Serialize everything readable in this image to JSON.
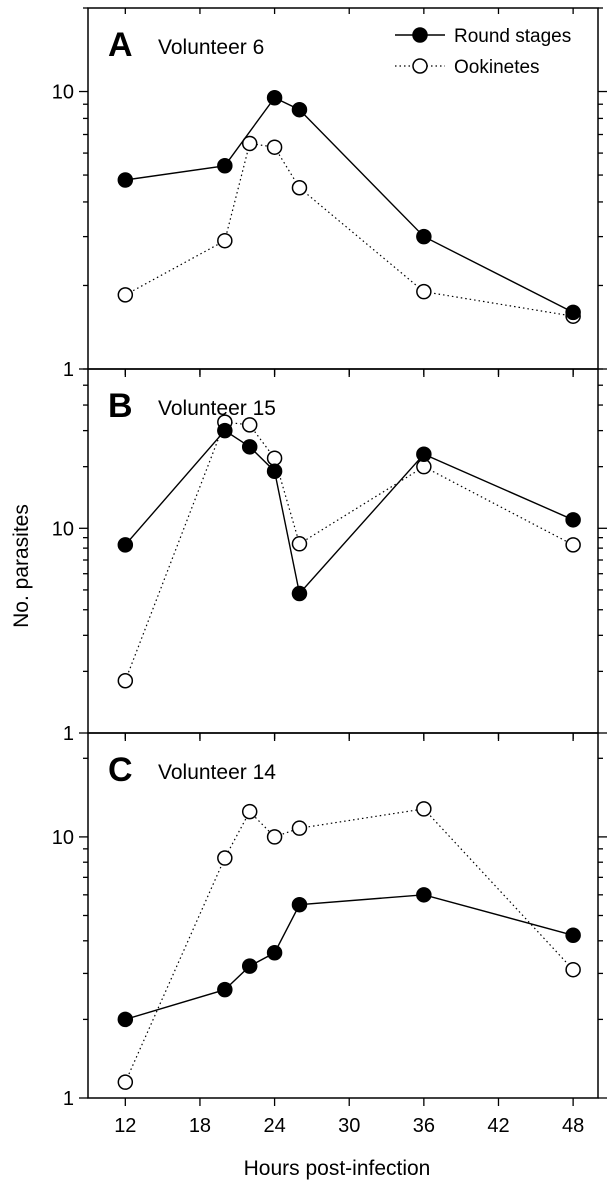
{
  "legend": {
    "position": "top-right",
    "round_label": "Round stages",
    "ookinete_label": "Ookinetes"
  },
  "axes": {
    "xlabel": "Hours post-infection",
    "ylabel": "No. parasites",
    "x_ticks": [
      "12",
      "18",
      "24",
      "30",
      "36",
      "42",
      "48"
    ]
  },
  "chart_data": [
    {
      "type": "line",
      "letter": "A",
      "title": "Volunteer 6",
      "yscale": "log",
      "ylim": [
        1,
        20
      ],
      "y_tick_labels": [
        "1",
        "10"
      ],
      "xlim": [
        9,
        50
      ],
      "series": [
        {
          "name": "Round stages",
          "marker": "filled-circle",
          "line": "solid",
          "x": [
            12,
            20,
            24,
            26,
            36,
            48
          ],
          "y": [
            4.8,
            5.4,
            9.5,
            8.6,
            3.0,
            1.6
          ]
        },
        {
          "name": "Ookinetes",
          "marker": "open-circle",
          "line": "dotted",
          "x": [
            12,
            20,
            22,
            24,
            26,
            36,
            48
          ],
          "y": [
            1.85,
            2.9,
            6.5,
            6.3,
            4.5,
            1.9,
            1.55
          ]
        }
      ]
    },
    {
      "type": "line",
      "letter": "B",
      "title": "Volunteer 15",
      "yscale": "log",
      "ylim": [
        1,
        60
      ],
      "y_tick_labels": [
        "1",
        "10"
      ],
      "xlim": [
        9,
        50
      ],
      "series": [
        {
          "name": "Round stages",
          "marker": "filled-circle",
          "line": "solid",
          "x": [
            12,
            20,
            22,
            24,
            26,
            36,
            48
          ],
          "y": [
            8.3,
            30,
            25,
            19,
            4.8,
            23,
            11
          ]
        },
        {
          "name": "Ookinetes",
          "marker": "open-circle",
          "line": "dotted",
          "x": [
            12,
            20,
            22,
            24,
            26,
            36,
            48
          ],
          "y": [
            1.8,
            33,
            32,
            22,
            8.4,
            20,
            8.3
          ]
        }
      ]
    },
    {
      "type": "line",
      "letter": "C",
      "title": "Volunteer 14",
      "yscale": "log",
      "ylim": [
        1,
        25
      ],
      "y_tick_labels": [
        "1",
        "10"
      ],
      "xlim": [
        9,
        50
      ],
      "series": [
        {
          "name": "Round stages",
          "marker": "filled-circle",
          "line": "solid",
          "x": [
            12,
            20,
            22,
            24,
            26,
            36,
            48
          ],
          "y": [
            2.0,
            2.6,
            3.2,
            3.6,
            5.5,
            6.0,
            4.2
          ]
        },
        {
          "name": "Ookinetes",
          "marker": "open-circle",
          "line": "dotted",
          "x": [
            12,
            20,
            22,
            24,
            26,
            36,
            48
          ],
          "y": [
            1.15,
            8.3,
            12.5,
            10,
            10.8,
            12.8,
            3.1
          ]
        }
      ]
    }
  ]
}
